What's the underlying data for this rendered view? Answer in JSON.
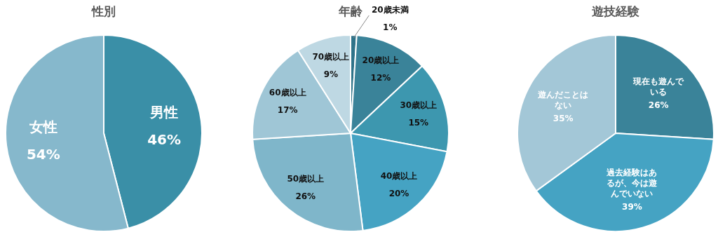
{
  "chart_data": [
    {
      "type": "pie",
      "title": "性別",
      "categories": [
        "男性",
        "女性"
      ],
      "values": [
        46,
        54
      ],
      "colors": [
        "#3a8fa7",
        "#86b8cc"
      ],
      "value_labels": [
        "46%",
        "54%"
      ]
    },
    {
      "type": "pie",
      "title": "年齢",
      "categories": [
        "20歳未満",
        "20歳以上",
        "30歳以上",
        "40歳以上",
        "50歳以上",
        "60歳以上",
        "70歳以上"
      ],
      "values": [
        1,
        12,
        15,
        20,
        26,
        17,
        9
      ],
      "colors": [
        "#2f7389",
        "#3a8399",
        "#3d97af",
        "#45a3c3",
        "#7fb6ca",
        "#9fc6d6",
        "#bed8e3"
      ],
      "value_labels": [
        "1%",
        "12%",
        "15%",
        "20%",
        "26%",
        "17%",
        "9%"
      ]
    },
    {
      "type": "pie",
      "title": "遊技経験",
      "categories": [
        "現在も遊んでいる",
        "過去経験はあるが、今は遊んでいない",
        "遊んだことはない"
      ],
      "values": [
        26,
        39,
        35
      ],
      "colors": [
        "#3a8399",
        "#45a3c3",
        "#a3c7d7"
      ],
      "value_labels": [
        "26%",
        "39%",
        "35%"
      ]
    }
  ]
}
